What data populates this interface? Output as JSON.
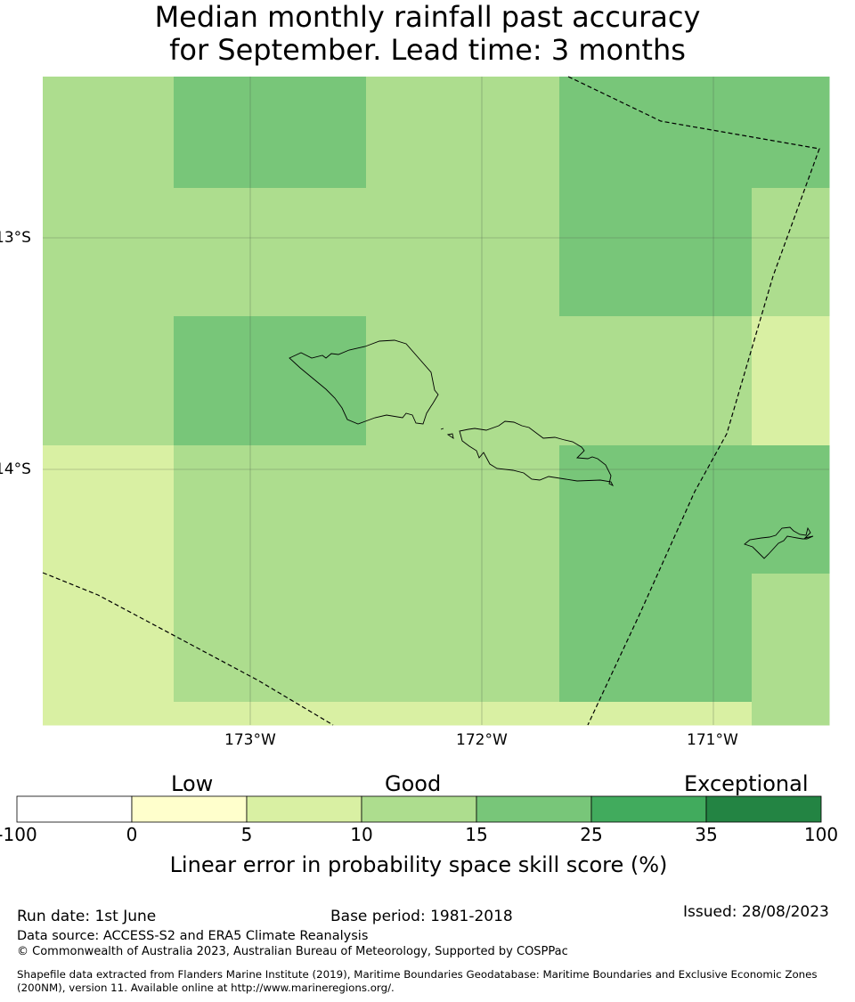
{
  "title_lines": [
    "Median monthly rainfall past accuracy",
    "for September. Lead time: 3 months"
  ],
  "colors": {
    "c_0_5": "#ffffcc",
    "c_5_10": "#d9f0a3",
    "c_10_15": "#addd8e",
    "c_15_25": "#78c679",
    "c_25_35": "#41ab5d",
    "c_35_100": "#238443",
    "c_neg": "#ffffff"
  },
  "map": {
    "lon_labels": [
      "173°W",
      "172°W",
      "171°W"
    ],
    "lat_labels": [
      "13°S",
      "14°S"
    ],
    "grid": [
      [
        "c_10_15",
        "c_15_25",
        "c_15_25",
        "c_10_15",
        "c_10_15",
        "c_15_25",
        "c_15_25"
      ],
      [
        "c_10_15",
        "c_10_15",
        "c_10_15",
        "c_10_15",
        "c_10_15",
        "c_15_25",
        "c_10_15"
      ],
      [
        "c_10_15",
        "c_15_25",
        "c_15_25",
        "c_10_15",
        "c_10_15",
        "c_10_15",
        "c_5_10"
      ],
      [
        "c_5_10",
        "c_10_15",
        "c_10_15",
        "c_10_15",
        "c_10_15",
        "c_15_25",
        "c_15_25"
      ],
      [
        "c_5_10",
        "c_10_15",
        "c_10_15",
        "c_10_15",
        "c_10_15",
        "c_15_25",
        "c_10_15"
      ],
      [
        "c_5_10",
        "c_5_10",
        "c_5_10",
        "c_5_10",
        "c_5_10",
        "c_5_10",
        "c_10_15"
      ]
    ],
    "grid_note_units": "cells are skill categories; boundaries are map data in degrees"
  },
  "colorbar": {
    "category_labels": [
      "Low",
      "Good",
      "Exceptional"
    ],
    "tick_labels": [
      "-100",
      "0",
      "5",
      "10",
      "15",
      "25",
      "35",
      "100"
    ],
    "bins": [
      "c_neg",
      "c_0_5",
      "c_5_10",
      "c_10_15",
      "c_15_25",
      "c_25_35",
      "c_35_100"
    ],
    "label": "Linear error in probability space skill score (%)"
  },
  "footer": {
    "run_date": "Run date: 1st June",
    "base_period": "Base period: 1981-2018",
    "issued": "Issued: 28/08/2023",
    "data_source": "Data source: ACCESS-S2 and ERA5 Climate Reanalysis",
    "copyright": "© Commonwealth of Australia 2023, Australian Bureau of Meteorology, Supported by COSPPac",
    "shapefile_line1": "Shapefile data extracted from Flanders Marine Institute (2019), Maritime Boundaries Geodatabase: Maritime Boundaries and Exclusive Economic Zones",
    "shapefile_line2": "(200NM), version 11. Available online at http://www.marineregions.org/."
  }
}
